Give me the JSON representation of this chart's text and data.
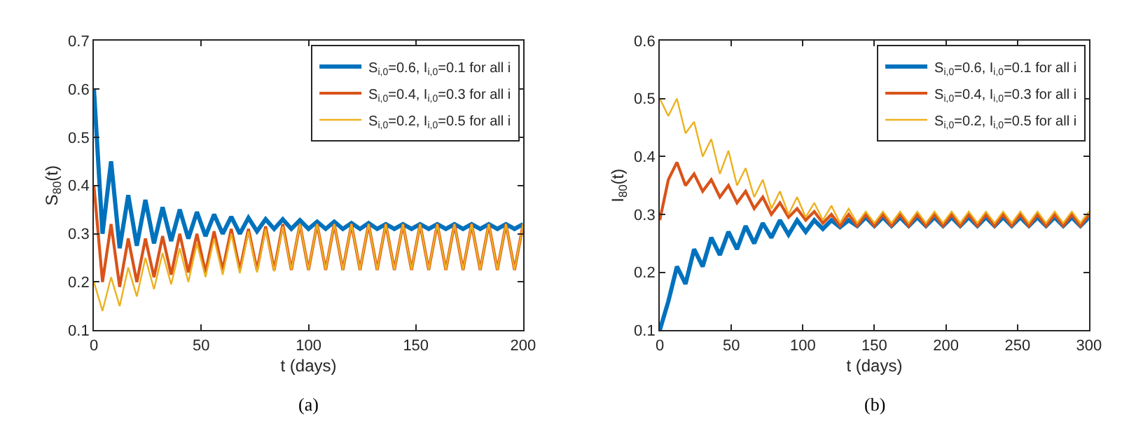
{
  "chart_data": [
    {
      "type": "line",
      "xlabel": "t (days)",
      "ylabel": "S$_{80}$(t)",
      "annotations": [
        "(a)"
      ],
      "legend": "top right",
      "x": [
        0,
        4,
        8,
        12,
        16,
        20,
        24,
        28,
        32,
        36,
        40,
        44,
        48,
        52,
        56,
        60,
        64,
        68,
        72,
        76,
        80,
        84,
        88,
        92,
        96,
        100,
        104,
        108,
        112,
        116,
        120,
        124,
        128,
        132,
        136,
        140,
        144,
        148,
        152,
        156,
        160,
        164,
        168,
        172,
        176,
        180,
        184,
        188,
        192,
        196,
        200
      ],
      "xlim": [
        0,
        200
      ],
      "xticks": [
        0,
        50,
        100,
        150,
        200
      ],
      "ylim": [
        0.1,
        0.7
      ],
      "yticks": [
        0.1,
        0.2,
        0.3,
        0.4,
        0.5,
        0.6,
        0.7
      ],
      "series": [
        {
          "name": "S$_{i,0}$=0.6, I$_{i,0}$=0.1 for all i",
          "color": "#0072bd",
          "values": [
            0.6,
            0.3,
            0.45,
            0.27,
            0.38,
            0.275,
            0.37,
            0.28,
            0.355,
            0.285,
            0.35,
            0.29,
            0.345,
            0.295,
            0.34,
            0.3,
            0.335,
            0.3,
            0.333,
            0.305,
            0.33,
            0.31,
            0.33,
            0.31,
            0.328,
            0.31,
            0.325,
            0.31,
            0.325,
            0.31,
            0.322,
            0.31,
            0.322,
            0.31,
            0.32,
            0.31,
            0.32,
            0.31,
            0.32,
            0.31,
            0.32,
            0.31,
            0.32,
            0.31,
            0.32,
            0.31,
            0.32,
            0.31,
            0.32,
            0.31,
            0.32
          ]
        },
        {
          "name": "S$_{i,0}$=0.4, I$_{i,0}$=0.3 for all i",
          "color": "#d95319",
          "values": [
            0.4,
            0.2,
            0.32,
            0.19,
            0.29,
            0.2,
            0.29,
            0.21,
            0.295,
            0.215,
            0.3,
            0.22,
            0.3,
            0.22,
            0.305,
            0.225,
            0.31,
            0.225,
            0.31,
            0.225,
            0.315,
            0.225,
            0.32,
            0.225,
            0.32,
            0.225,
            0.32,
            0.225,
            0.32,
            0.225,
            0.32,
            0.225,
            0.32,
            0.225,
            0.32,
            0.225,
            0.32,
            0.225,
            0.32,
            0.225,
            0.32,
            0.225,
            0.32,
            0.225,
            0.32,
            0.225,
            0.32,
            0.225,
            0.32,
            0.225,
            0.32
          ]
        },
        {
          "name": "S$_{i,0}$=0.2, I$_{i,0}$=0.5 for all i",
          "color": "#edb120",
          "values": [
            0.2,
            0.14,
            0.21,
            0.15,
            0.23,
            0.17,
            0.25,
            0.185,
            0.26,
            0.195,
            0.27,
            0.2,
            0.28,
            0.21,
            0.29,
            0.215,
            0.3,
            0.218,
            0.305,
            0.22,
            0.31,
            0.222,
            0.315,
            0.225,
            0.32,
            0.225,
            0.32,
            0.225,
            0.32,
            0.225,
            0.32,
            0.225,
            0.32,
            0.225,
            0.32,
            0.225,
            0.32,
            0.225,
            0.32,
            0.225,
            0.32,
            0.225,
            0.32,
            0.225,
            0.32,
            0.225,
            0.32,
            0.225,
            0.32,
            0.225,
            0.32
          ]
        }
      ]
    },
    {
      "type": "line",
      "xlabel": "t (days)",
      "ylabel": "I$_{80}$(t)",
      "annotations": [
        "(b)"
      ],
      "legend": "top right",
      "x": [
        0,
        6,
        12,
        18,
        24,
        30,
        36,
        42,
        48,
        54,
        60,
        66,
        72,
        78,
        84,
        90,
        96,
        102,
        108,
        114,
        120,
        126,
        132,
        138,
        144,
        150,
        156,
        162,
        168,
        174,
        180,
        186,
        192,
        198,
        204,
        210,
        216,
        222,
        228,
        234,
        240,
        246,
        252,
        258,
        264,
        270,
        276,
        282,
        288,
        294,
        300
      ],
      "xlim": [
        0,
        300
      ],
      "xticks": [
        0,
        50,
        100,
        150,
        200,
        250,
        300
      ],
      "ylim": [
        0.1,
        0.6
      ],
      "yticks": [
        0.1,
        0.2,
        0.3,
        0.4,
        0.5,
        0.6
      ],
      "series": [
        {
          "name": "S$_{i,0}$=0.6, I$_{i,0}$=0.1 for all i",
          "color": "#0072bd",
          "values": [
            0.1,
            0.15,
            0.21,
            0.18,
            0.24,
            0.21,
            0.26,
            0.23,
            0.27,
            0.24,
            0.28,
            0.25,
            0.285,
            0.26,
            0.29,
            0.265,
            0.29,
            0.27,
            0.29,
            0.275,
            0.29,
            0.278,
            0.29,
            0.28,
            0.295,
            0.28,
            0.295,
            0.28,
            0.295,
            0.28,
            0.295,
            0.28,
            0.295,
            0.28,
            0.295,
            0.28,
            0.295,
            0.28,
            0.295,
            0.28,
            0.295,
            0.28,
            0.295,
            0.28,
            0.295,
            0.28,
            0.295,
            0.28,
            0.295,
            0.28,
            0.295
          ]
        },
        {
          "name": "S$_{i,0}$=0.4, I$_{i,0}$=0.3 for all i",
          "color": "#d95319",
          "values": [
            0.29,
            0.36,
            0.39,
            0.35,
            0.37,
            0.34,
            0.36,
            0.33,
            0.35,
            0.32,
            0.34,
            0.31,
            0.33,
            0.3,
            0.32,
            0.295,
            0.31,
            0.29,
            0.305,
            0.285,
            0.3,
            0.28,
            0.3,
            0.28,
            0.3,
            0.28,
            0.3,
            0.28,
            0.3,
            0.28,
            0.3,
            0.28,
            0.3,
            0.28,
            0.3,
            0.28,
            0.3,
            0.28,
            0.3,
            0.28,
            0.3,
            0.28,
            0.3,
            0.28,
            0.3,
            0.28,
            0.3,
            0.28,
            0.3,
            0.28,
            0.3
          ]
        },
        {
          "name": "S$_{i,0}$=0.2, I$_{i,0}$=0.5 for all i",
          "color": "#edb120",
          "values": [
            0.5,
            0.47,
            0.5,
            0.44,
            0.46,
            0.4,
            0.43,
            0.37,
            0.41,
            0.35,
            0.38,
            0.33,
            0.36,
            0.31,
            0.34,
            0.3,
            0.33,
            0.295,
            0.32,
            0.29,
            0.315,
            0.285,
            0.31,
            0.285,
            0.305,
            0.285,
            0.305,
            0.285,
            0.305,
            0.285,
            0.305,
            0.285,
            0.305,
            0.285,
            0.305,
            0.285,
            0.305,
            0.285,
            0.305,
            0.285,
            0.305,
            0.285,
            0.305,
            0.285,
            0.305,
            0.285,
            0.305,
            0.285,
            0.305,
            0.285,
            0.305
          ]
        }
      ]
    }
  ]
}
